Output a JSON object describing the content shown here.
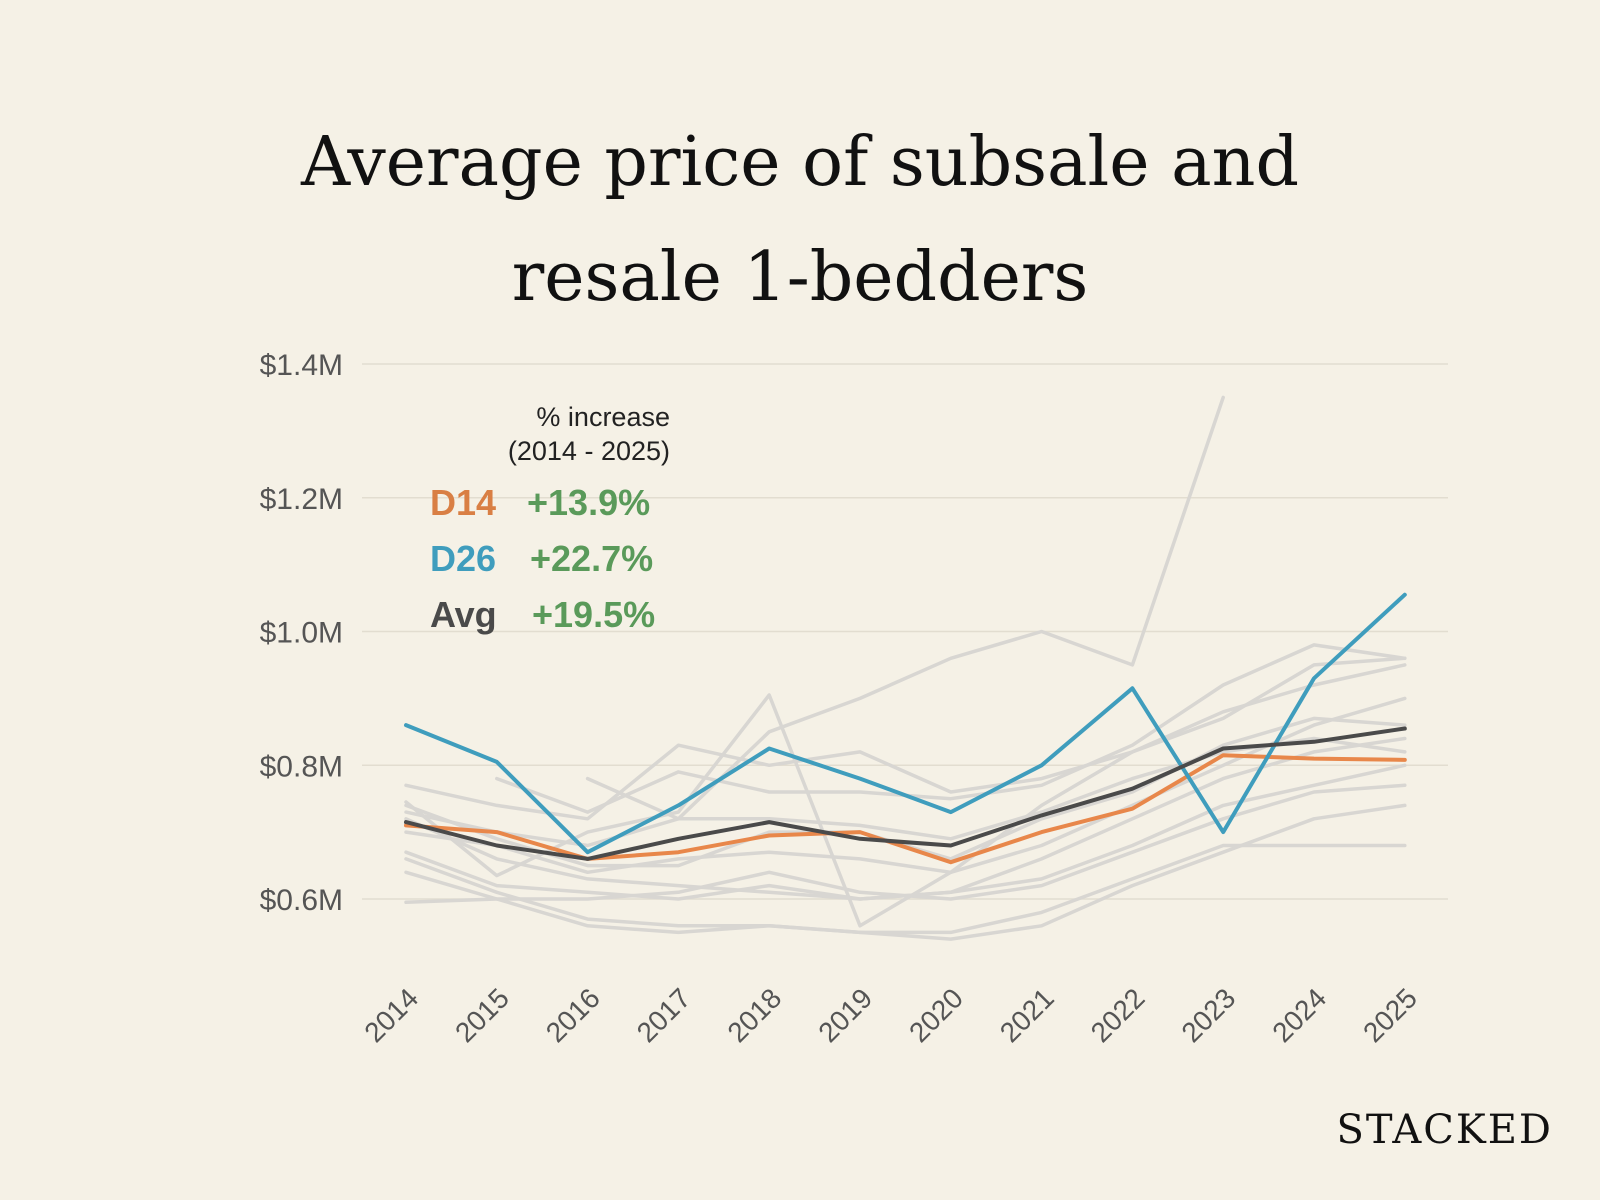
{
  "chart_data": {
    "type": "line",
    "title_lines": [
      "Average price of subsale and",
      "resale 1-bedders"
    ],
    "xlabel": "",
    "ylabel": "",
    "categories": [
      "2014",
      "2015",
      "2016",
      "2017",
      "2018",
      "2019",
      "2020",
      "2021",
      "2022",
      "2023",
      "2024",
      "2025"
    ],
    "ylim": [
      0.6,
      1.4
    ],
    "yticks": [
      0.6,
      0.8,
      1.0,
      1.2,
      1.4
    ],
    "ytick_labels": [
      "$0.6M",
      "$0.8M",
      "$1.0M",
      "$1.2M",
      "$1.4M"
    ],
    "grid": true,
    "highlight_series": [
      {
        "name": "D14",
        "color": "#e8874a",
        "values": [
          0.71,
          0.7,
          0.66,
          0.67,
          0.695,
          0.7,
          0.655,
          0.7,
          0.735,
          0.815,
          0.81,
          0.808
        ]
      },
      {
        "name": "D26",
        "color": "#3f9dbd",
        "values": [
          0.86,
          0.805,
          0.67,
          0.74,
          0.825,
          0.78,
          0.73,
          0.8,
          0.915,
          0.7,
          0.93,
          1.055
        ]
      },
      {
        "name": "Avg",
        "color": "#4a4a4a",
        "values": [
          0.715,
          0.68,
          0.66,
          0.69,
          0.715,
          0.69,
          0.68,
          0.725,
          0.765,
          0.825,
          0.835,
          0.855
        ]
      }
    ],
    "background_series": [
      [
        0.77,
        0.74,
        0.72,
        0.83,
        0.8,
        0.82,
        0.76,
        0.78,
        0.82,
        0.88,
        0.92,
        0.95
      ],
      [
        0.745,
        0.635,
        0.7,
        0.73,
        0.905,
        0.56,
        0.64,
        0.74,
        0.82,
        0.87,
        0.95,
        0.96
      ],
      [
        0.72,
        0.66,
        0.63,
        0.62,
        0.61,
        0.6,
        0.61,
        0.66,
        0.72,
        0.78,
        0.82,
        0.84
      ],
      [
        0.7,
        0.68,
        0.64,
        0.66,
        0.67,
        0.66,
        0.64,
        0.68,
        0.74,
        0.8,
        0.86,
        0.9
      ],
      [
        0.67,
        0.62,
        0.61,
        0.6,
        0.62,
        0.6,
        0.61,
        0.63,
        0.68,
        0.74,
        0.77,
        0.8
      ],
      [
        0.66,
        0.61,
        0.57,
        0.56,
        0.56,
        0.55,
        0.55,
        0.58,
        0.63,
        0.68,
        0.68,
        0.68
      ],
      [
        0.64,
        0.6,
        0.56,
        0.55,
        0.56,
        0.55,
        0.54,
        0.56,
        0.62,
        0.67,
        0.72,
        0.74
      ],
      [
        0.595,
        0.6,
        0.6,
        0.61,
        0.64,
        0.61,
        0.6,
        0.62,
        0.67,
        0.72,
        0.76,
        0.77
      ],
      [
        null,
        0.78,
        0.73,
        0.79,
        0.76,
        0.76,
        0.75,
        0.77,
        0.83,
        0.92,
        0.98,
        0.96
      ],
      [
        null,
        null,
        0.78,
        0.72,
        0.85,
        0.9,
        0.96,
        1.0,
        0.95,
        1.35,
        null,
        null
      ],
      [
        0.73,
        0.7,
        0.68,
        0.72,
        0.72,
        0.71,
        0.69,
        0.73,
        0.78,
        0.82,
        0.84,
        0.82
      ],
      [
        0.74,
        0.69,
        0.65,
        0.65,
        0.7,
        0.7,
        0.66,
        0.72,
        0.76,
        0.83,
        0.87,
        0.86
      ]
    ],
    "background_color": "#d8d6d2",
    "legend": {
      "title_lines": [
        "% increase",
        "(2014 - 2025)"
      ],
      "placement": "top-left",
      "entries": [
        {
          "name": "D14",
          "pct": "+13.9%",
          "color": "#d97f44"
        },
        {
          "name": "D26",
          "pct": "+22.7%",
          "color": "#3f9dbd"
        },
        {
          "name": "Avg",
          "pct": "+19.5%",
          "color": "#4a4a4a"
        }
      ]
    }
  },
  "brand": "STACKED"
}
